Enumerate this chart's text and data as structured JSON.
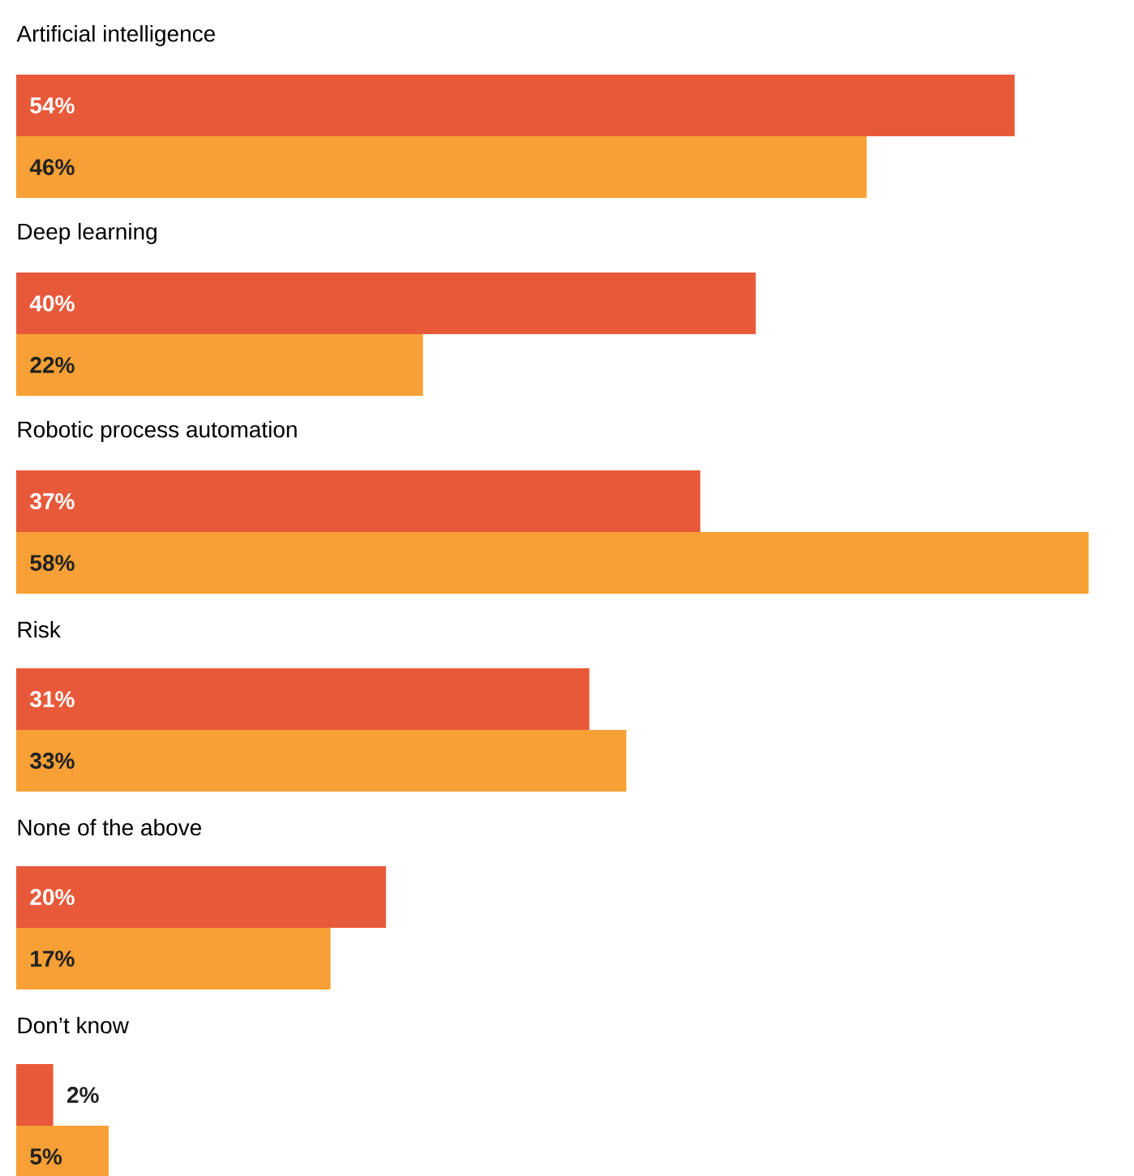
{
  "chart_data": {
    "type": "bar",
    "orientation": "horizontal",
    "categories": [
      "Artificial intelligence",
      "Deep learning",
      "Robotic process automation",
      "Risk",
      "None of the above",
      "Don’t know"
    ],
    "series": [
      {
        "color": "#e8593a",
        "values": [
          54,
          40,
          37,
          31,
          20,
          2
        ],
        "value_labels": [
          "54%",
          "40%",
          "37%",
          "31%",
          "20%",
          "2%"
        ]
      },
      {
        "color": "#f7a035",
        "values": [
          46,
          22,
          58,
          33,
          17,
          5
        ],
        "value_labels": [
          "46%",
          "22%",
          "58%",
          "33%",
          "17%",
          "5%"
        ]
      }
    ]
  }
}
